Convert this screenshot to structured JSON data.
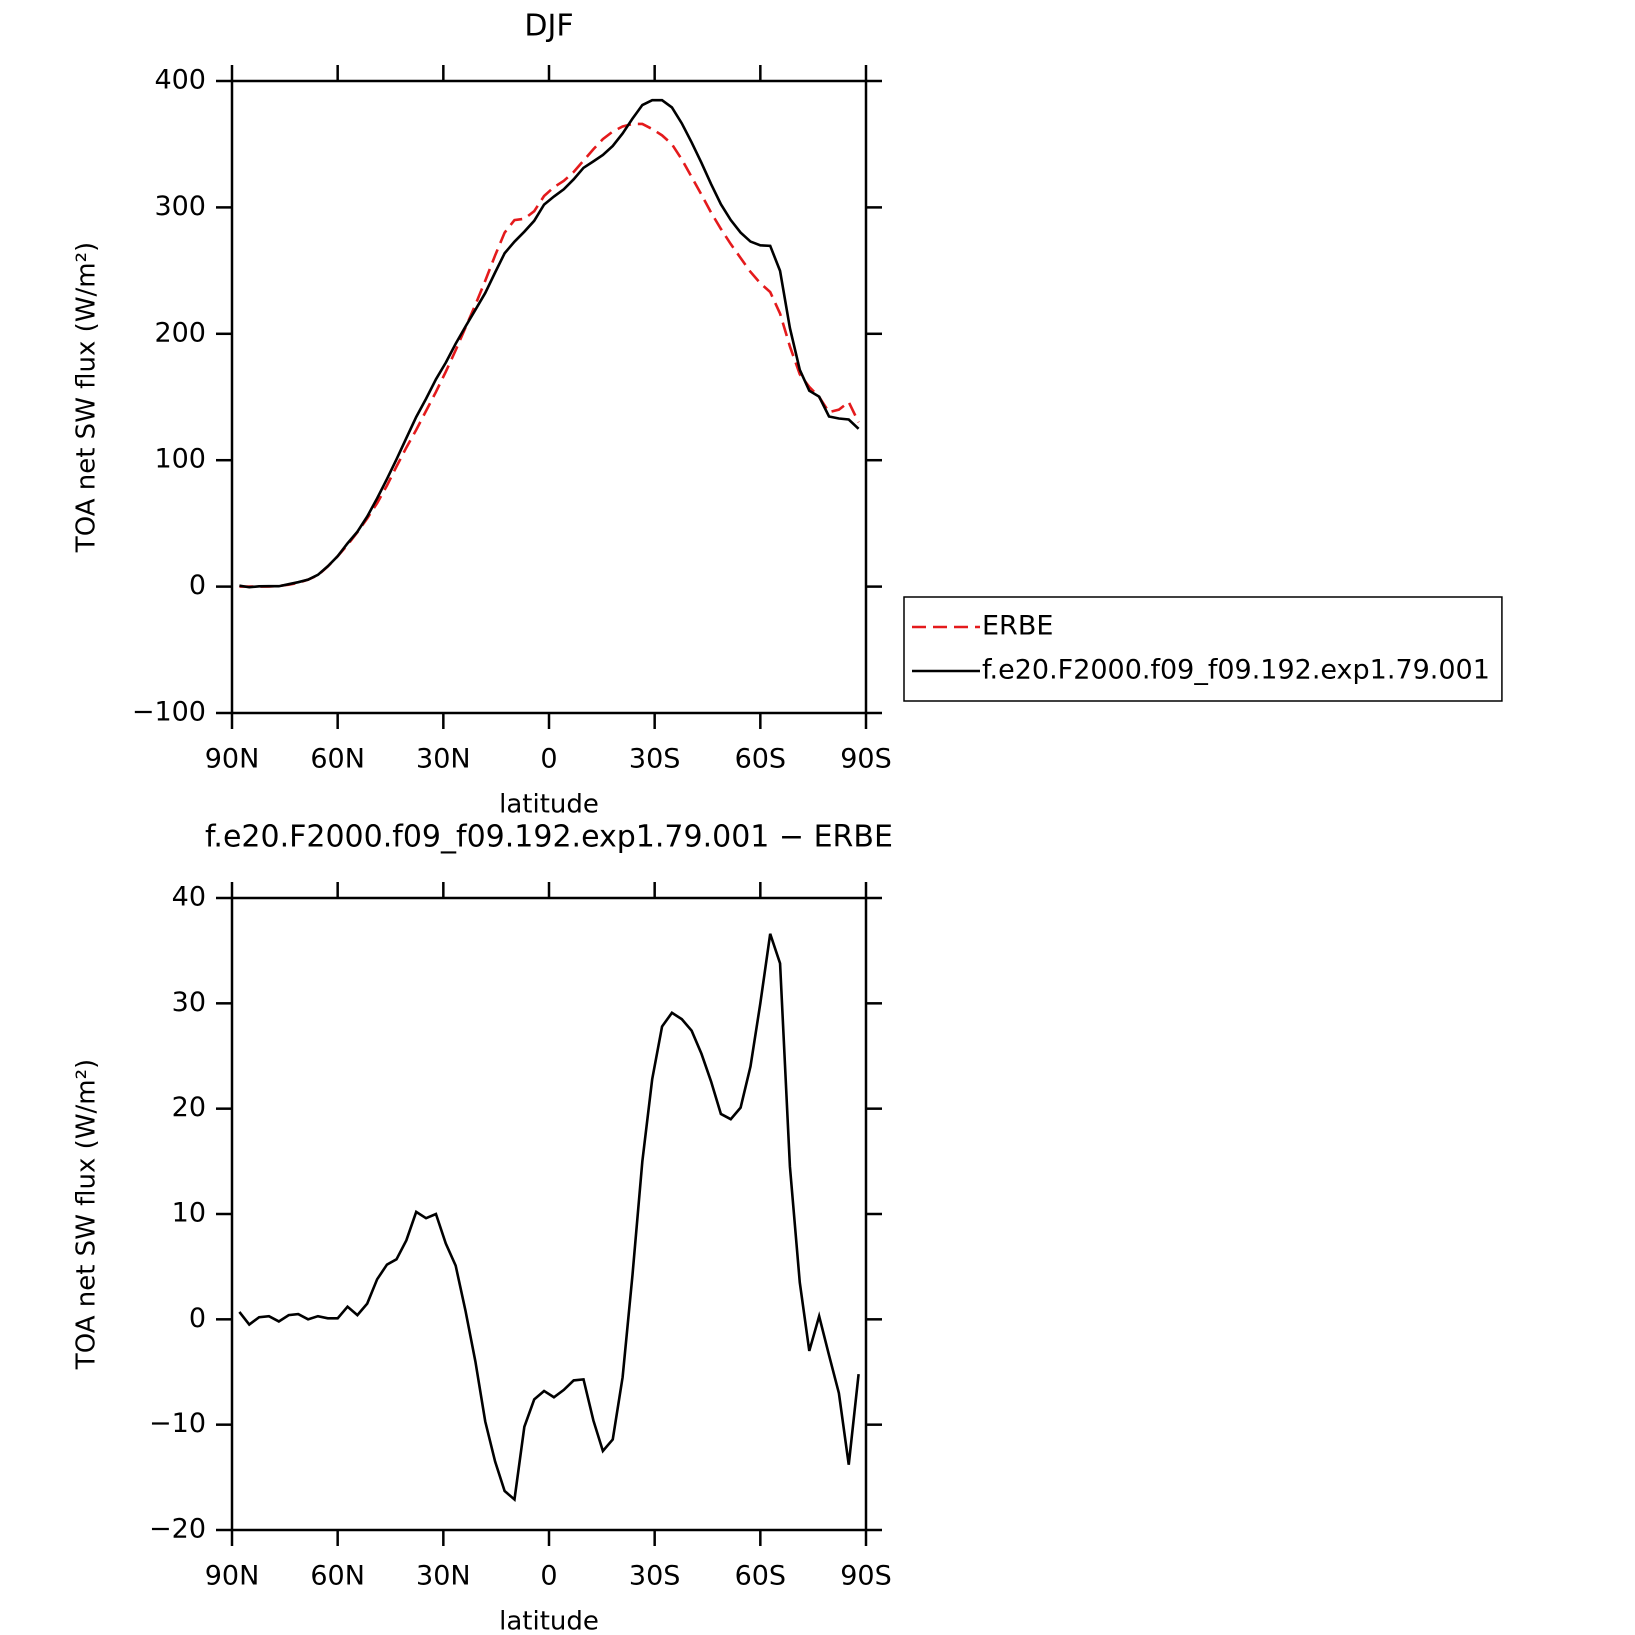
{
  "chart_data": [
    {
      "type": "line",
      "title": "DJF",
      "xlabel": "latitude",
      "ylabel": "TOA net SW flux (W/m²)",
      "x": [
        87.9,
        85.1,
        82.3,
        79.5,
        76.7,
        73.9,
        71.2,
        68.4,
        65.6,
        62.8,
        60.0,
        57.2,
        54.4,
        51.6,
        48.8,
        46.0,
        43.3,
        40.5,
        37.7,
        34.9,
        32.1,
        29.3,
        26.5,
        23.7,
        20.9,
        18.1,
        15.3,
        12.6,
        9.8,
        7.0,
        4.2,
        1.4,
        -1.4,
        -4.2,
        -7.0,
        -9.8,
        -12.6,
        -15.3,
        -18.1,
        -20.9,
        -23.7,
        -26.5,
        -29.3,
        -32.1,
        -34.9,
        -37.7,
        -40.5,
        -43.3,
        -46.0,
        -48.8,
        -51.6,
        -54.4,
        -57.2,
        -60.0,
        -62.8,
        -65.6,
        -68.4,
        -71.2,
        -73.9,
        -76.7,
        -79.5,
        -82.3,
        -85.1,
        -87.9
      ],
      "xlim": [
        90,
        -90
      ],
      "xticks": [
        {
          "value": 90,
          "label": "90N"
        },
        {
          "value": 60,
          "label": "60N"
        },
        {
          "value": 30,
          "label": "30N"
        },
        0,
        {
          "value": -30,
          "label": "30S"
        },
        {
          "value": -60,
          "label": "60S"
        },
        {
          "value": -90,
          "label": "90S"
        }
      ],
      "ylim": [
        -100,
        400
      ],
      "yticks": [
        {
          "value": -100,
          "label": "−100"
        },
        0,
        100,
        200,
        300,
        400
      ],
      "legend": "right",
      "series": [
        {
          "name": "ERBE",
          "color": "#e41a1c",
          "dash": "dashed",
          "values": [
            0,
            0,
            0,
            0,
            0.5,
            1.5,
            3,
            5.5,
            9,
            16,
            24,
            33,
            43,
            54,
            66,
            80,
            95,
            110,
            124,
            139,
            154,
            170,
            187,
            205,
            223,
            242,
            262,
            280,
            290,
            291,
            297,
            309,
            316,
            321,
            328,
            337,
            346,
            354,
            360,
            364,
            366,
            366,
            362,
            357,
            350,
            338,
            324,
            310,
            296,
            283,
            271,
            260,
            249,
            240,
            233,
            216,
            190,
            168,
            158,
            150,
            138,
            140,
            146,
            130
          ]
        },
        {
          "name": "f.e20.F2000.f09_f09.192.exp1.79.001",
          "color": "#000000",
          "dash": "solid",
          "values": [
            0.7,
            -0.5,
            0.2,
            0.3,
            0.3,
            1.9,
            3.5,
            5.5,
            9.3,
            16.1,
            24.1,
            34.2,
            43.4,
            55.5,
            69.8,
            85.2,
            100.7,
            117.5,
            134.2,
            148.6,
            164,
            177.2,
            192.1,
            205.8,
            219,
            232.3,
            248.5,
            263.7,
            272.9,
            280.8,
            289.4,
            302.2,
            308.6,
            314.3,
            322.2,
            331.3,
            336.4,
            341.5,
            348.6,
            358.5,
            370.2,
            381,
            384.8,
            384.8,
            379.1,
            366.5,
            351.4,
            335.2,
            318.6,
            302.5,
            290,
            280.1,
            273,
            270,
            269.6,
            249.8,
            204.5,
            171.5,
            155,
            150.3,
            134.6,
            133,
            132.2,
            124.8
          ]
        }
      ]
    },
    {
      "type": "line",
      "title": "f.e20.F2000.f09_f09.192.exp1.79.001 − ERBE",
      "xlabel": "latitude",
      "ylabel": "TOA net SW flux (W/m²)",
      "x": [
        87.9,
        85.1,
        82.3,
        79.5,
        76.7,
        73.9,
        71.2,
        68.4,
        65.6,
        62.8,
        60.0,
        57.2,
        54.4,
        51.6,
        48.8,
        46.0,
        43.3,
        40.5,
        37.7,
        34.9,
        32.1,
        29.3,
        26.5,
        23.7,
        20.9,
        18.1,
        15.3,
        12.6,
        9.8,
        7.0,
        4.2,
        1.4,
        -1.4,
        -4.2,
        -7.0,
        -9.8,
        -12.6,
        -15.3,
        -18.1,
        -20.9,
        -23.7,
        -26.5,
        -29.3,
        -32.1,
        -34.9,
        -37.7,
        -40.5,
        -43.3,
        -46.0,
        -48.8,
        -51.6,
        -54.4,
        -57.2,
        -60.0,
        -62.8,
        -65.6,
        -68.4,
        -71.2,
        -73.9,
        -76.7,
        -79.5,
        -82.3,
        -85.1,
        -87.9
      ],
      "xlim": [
        90,
        -90
      ],
      "xticks": [
        {
          "value": 90,
          "label": "90N"
        },
        {
          "value": 60,
          "label": "60N"
        },
        {
          "value": 30,
          "label": "30N"
        },
        0,
        {
          "value": -30,
          "label": "30S"
        },
        {
          "value": -60,
          "label": "60S"
        },
        {
          "value": -90,
          "label": "90S"
        }
      ],
      "ylim": [
        -20,
        40
      ],
      "yticks": [
        {
          "value": -20,
          "label": "−20"
        },
        {
          "value": -10,
          "label": "−10"
        },
        0,
        10,
        20,
        30,
        40
      ],
      "series": [
        {
          "color": "#000000",
          "dash": "solid",
          "values": [
            0.7,
            -0.5,
            0.2,
            0.3,
            -0.2,
            0.4,
            0.5,
            0.0,
            0.3,
            0.1,
            0.1,
            1.2,
            0.4,
            1.5,
            3.8,
            5.2,
            5.7,
            7.5,
            10.2,
            9.6,
            10.0,
            7.2,
            5.1,
            0.8,
            -4,
            -9.7,
            -13.5,
            -16.3,
            -17.1,
            -10.2,
            -7.6,
            -6.8,
            -7.4,
            -6.7,
            -5.8,
            -5.7,
            -9.6,
            -12.5,
            -11.4,
            -5.5,
            4.2,
            15,
            22.8,
            27.8,
            29.1,
            28.5,
            27.4,
            25.2,
            22.6,
            19.5,
            19.0,
            20.1,
            24.0,
            30.0,
            36.6,
            33.8,
            14.5,
            3.5,
            -3.0,
            0.3,
            -3.4,
            -7.0,
            -13.8,
            -5.2
          ]
        }
      ]
    }
  ]
}
